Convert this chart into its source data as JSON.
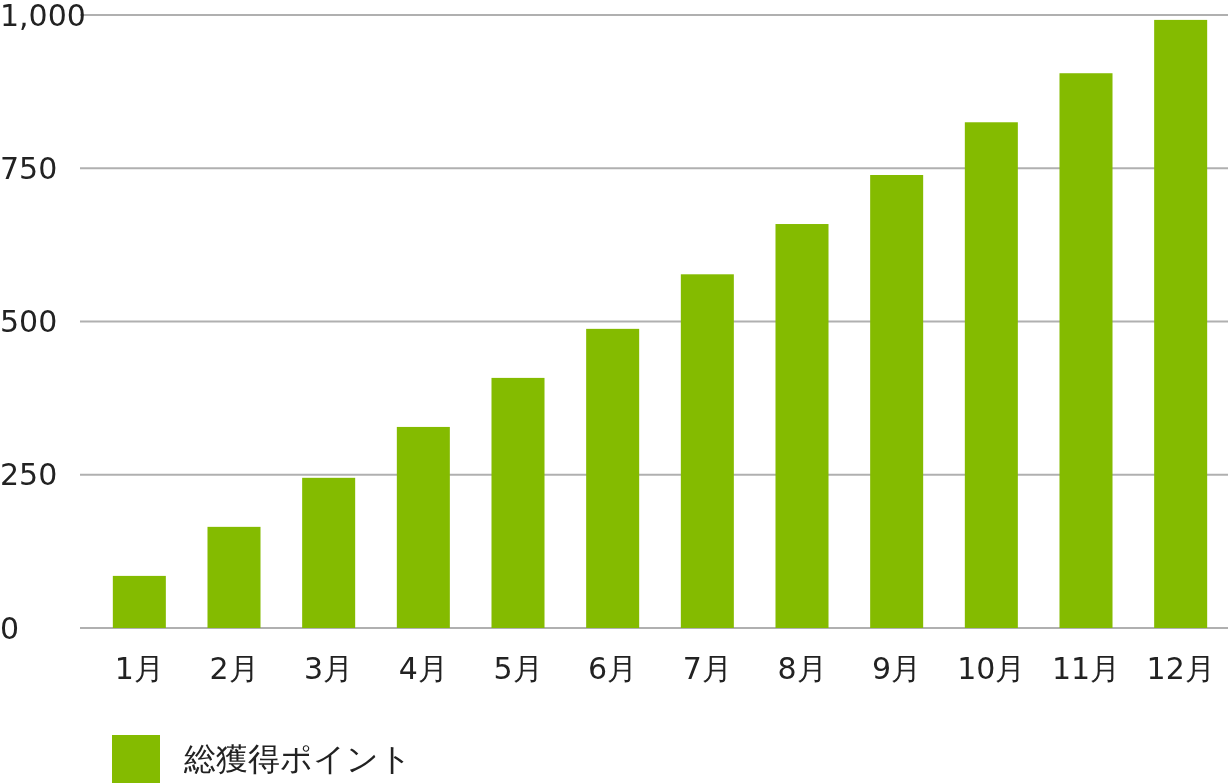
{
  "chart_data": {
    "type": "bar",
    "categories": [
      "1月",
      "2月",
      "3月",
      "4月",
      "5月",
      "6月",
      "7月",
      "8月",
      "9月",
      "10月",
      "11月",
      "12月"
    ],
    "series": [
      {
        "name": "総獲得ポイント",
        "color": "#84bb00",
        "values": [
          85,
          165,
          245,
          328,
          408,
          488,
          577,
          659,
          739,
          825,
          905,
          992
        ]
      }
    ],
    "ylim": [
      0,
      1000
    ],
    "yticks": [
      0,
      250,
      500,
      750,
      {
        "value": 1000,
        "label": "1,000"
      }
    ],
    "grid": "y",
    "legend": "bottom left"
  }
}
